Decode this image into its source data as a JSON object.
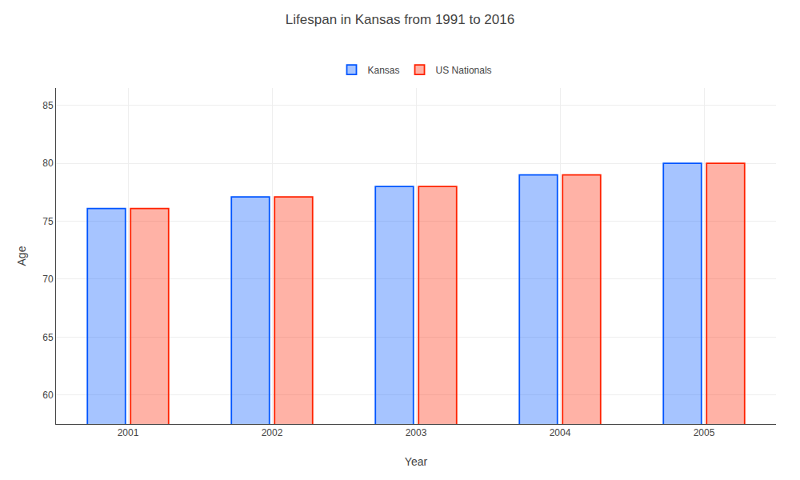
{
  "chart_data": {
    "type": "bar",
    "title": "Lifespan in Kansas from 1991 to 2016",
    "x_label": "Year",
    "y_label": "Age",
    "categories": [
      "2001",
      "2002",
      "2003",
      "2004",
      "2005"
    ],
    "series": [
      {
        "name": "Kansas",
        "color": "#0055ff",
        "values": [
          76.1,
          77.1,
          78.0,
          79.0,
          80.0
        ]
      },
      {
        "name": "US Nationals",
        "color": "#ff2200",
        "values": [
          76.1,
          77.1,
          78.0,
          79.0,
          80.0
        ]
      }
    ],
    "ylim": [
      57.5,
      86.5
    ],
    "yticks": [
      60,
      65,
      70,
      75,
      80,
      85
    ],
    "grid": true,
    "legend": "top"
  }
}
